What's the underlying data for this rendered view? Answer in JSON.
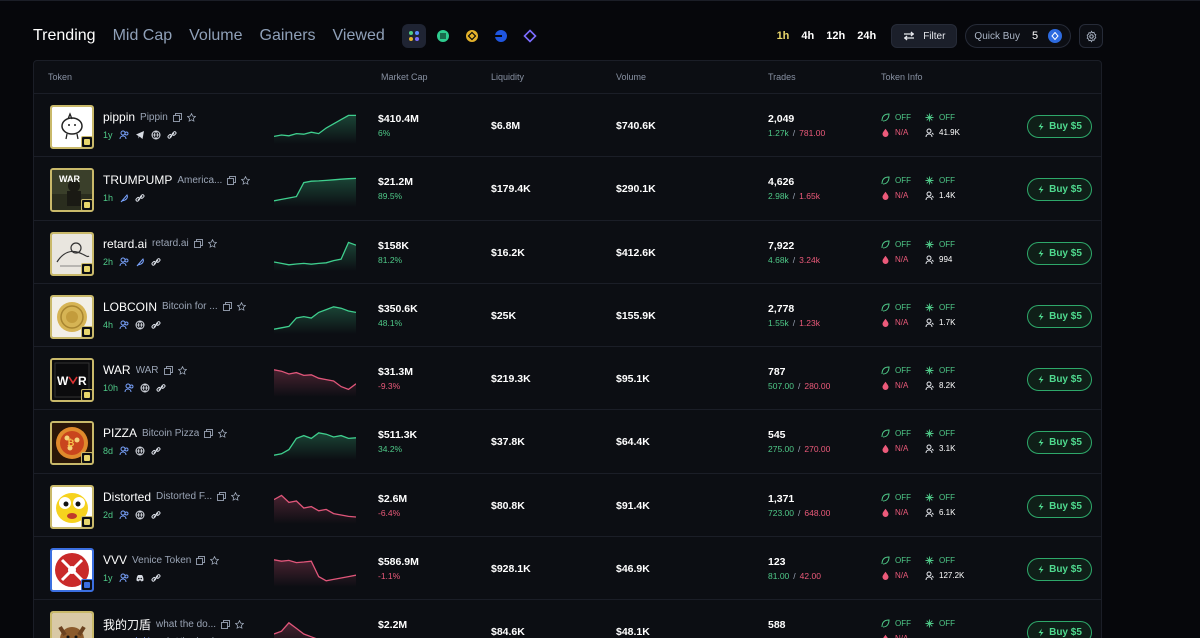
{
  "tabs": [
    "Trending",
    "Mid Cap",
    "Volume",
    "Gainers",
    "Viewed"
  ],
  "active_tab": 0,
  "chains": [
    {
      "name": "all-chains",
      "color": "#5b8cff"
    },
    {
      "name": "solana",
      "color": "#2ecc8f"
    },
    {
      "name": "bnb",
      "color": "#e4b22b"
    },
    {
      "name": "base",
      "color": "#1f56e0"
    },
    {
      "name": "ethereum",
      "color": "#7b6cff"
    }
  ],
  "timeframes": [
    "1h",
    "4h",
    "12h",
    "24h"
  ],
  "active_timeframe": 0,
  "filter_label": "Filter",
  "quick_buy": {
    "label": "Quick Buy",
    "value": "5"
  },
  "columns": {
    "token": "Token",
    "market_cap": "Market Cap",
    "liquidity": "Liquidity",
    "volume": "Volume",
    "trades": "Trades",
    "token_info": "Token Info"
  },
  "rows": [
    {
      "symbol": "pippin",
      "name": "Pippin",
      "age": "1y",
      "socials": [
        "users-icon",
        "telegram-icon",
        "globe-icon",
        "link-icon"
      ],
      "trend": "up",
      "spark": [
        0.2,
        0.25,
        0.22,
        0.3,
        0.28,
        0.35,
        0.3,
        0.5,
        0.65,
        0.8,
        0.95,
        0.95
      ],
      "market_cap": "$410.4M",
      "change": "6%",
      "liquidity": "$6.8M",
      "volume": "$740.6K",
      "trades": "2,049",
      "buys": "1.27k",
      "sells": "781.00",
      "dev": "OFF",
      "snipers": "OFF",
      "top10": "N/A",
      "holders": "41.9K",
      "buy_label": "Buy $5",
      "avatar": "pippin"
    },
    {
      "symbol": "TRUMPUMP",
      "name": "America...",
      "age": "1h",
      "socials": [
        "feather-icon",
        "link-icon"
      ],
      "trend": "up",
      "spark": [
        0.15,
        0.2,
        0.25,
        0.3,
        0.8,
        0.85,
        0.86,
        0.88,
        0.9,
        0.92,
        0.94,
        0.95
      ],
      "market_cap": "$21.2M",
      "change": "89.5%",
      "liquidity": "$179.4K",
      "volume": "$290.1K",
      "trades": "4,626",
      "buys": "2.98k",
      "sells": "1.65k",
      "dev": "OFF",
      "snipers": "OFF",
      "top10": "N/A",
      "holders": "1.4K",
      "buy_label": "Buy $5",
      "avatar": "war-soldier"
    },
    {
      "symbol": "retard.ai",
      "name": "retard.ai",
      "age": "2h",
      "socials": [
        "users-icon",
        "feather-icon",
        "link-icon"
      ],
      "trend": "up",
      "spark": [
        0.25,
        0.2,
        0.15,
        0.18,
        0.2,
        0.17,
        0.2,
        0.22,
        0.3,
        0.35,
        0.95,
        0.85
      ],
      "market_cap": "$158K",
      "change": "81.2%",
      "liquidity": "$16.2K",
      "volume": "$412.6K",
      "trades": "7,922",
      "buys": "4.68k",
      "sells": "3.24k",
      "dev": "OFF",
      "snipers": "OFF",
      "top10": "N/A",
      "holders": "994",
      "buy_label": "Buy $5",
      "avatar": "sketch"
    },
    {
      "symbol": "LOBCOIN",
      "name": "Bitcoin for ...",
      "age": "4h",
      "socials": [
        "users-icon",
        "globe-icon",
        "link-icon"
      ],
      "trend": "up",
      "spark": [
        0.1,
        0.15,
        0.2,
        0.5,
        0.55,
        0.5,
        0.7,
        0.8,
        0.9,
        0.85,
        0.75,
        0.7
      ],
      "market_cap": "$350.6K",
      "change": "48.1%",
      "liquidity": "$25K",
      "volume": "$155.9K",
      "trades": "2,778",
      "buys": "1.55k",
      "sells": "1.23k",
      "dev": "OFF",
      "snipers": "OFF",
      "top10": "N/A",
      "holders": "1.7K",
      "buy_label": "Buy $5",
      "avatar": "coin"
    },
    {
      "symbol": "WAR",
      "name": "WAR",
      "age": "10h",
      "socials": [
        "users-icon",
        "globe-icon",
        "link-icon"
      ],
      "trend": "down",
      "spark": [
        0.9,
        0.85,
        0.75,
        0.8,
        0.7,
        0.72,
        0.6,
        0.55,
        0.5,
        0.3,
        0.2,
        0.4
      ],
      "market_cap": "$31.3M",
      "change": "-9.3%",
      "liquidity": "$219.3K",
      "volume": "$95.1K",
      "trades": "787",
      "buys": "507.00",
      "sells": "280.00",
      "dev": "OFF",
      "snipers": "OFF",
      "top10": "N/A",
      "holders": "8.2K",
      "buy_label": "Buy $5",
      "avatar": "war-logo"
    },
    {
      "symbol": "PIZZA",
      "name": "Bitcoin Pizza",
      "age": "8d",
      "socials": [
        "users-icon",
        "globe-icon",
        "link-icon"
      ],
      "trend": "up",
      "spark": [
        0.1,
        0.15,
        0.3,
        0.7,
        0.8,
        0.7,
        0.9,
        0.85,
        0.75,
        0.8,
        0.7,
        0.72
      ],
      "market_cap": "$511.3K",
      "change": "34.2%",
      "liquidity": "$37.8K",
      "volume": "$64.4K",
      "trades": "545",
      "buys": "275.00",
      "sells": "270.00",
      "dev": "OFF",
      "snipers": "OFF",
      "top10": "N/A",
      "holders": "3.1K",
      "buy_label": "Buy $5",
      "avatar": "pizza"
    },
    {
      "symbol": "Distorted",
      "name": "Distorted F...",
      "age": "2d",
      "socials": [
        "users-icon",
        "globe-icon",
        "link-icon"
      ],
      "trend": "down",
      "spark": [
        0.8,
        0.95,
        0.7,
        0.75,
        0.5,
        0.55,
        0.4,
        0.45,
        0.3,
        0.25,
        0.2,
        0.18
      ],
      "market_cap": "$2.6M",
      "change": "-6.4%",
      "liquidity": "$80.8K",
      "volume": "$91.4K",
      "trades": "1,371",
      "buys": "723.00",
      "sells": "648.00",
      "dev": "OFF",
      "snipers": "OFF",
      "top10": "N/A",
      "holders": "6.1K",
      "buy_label": "Buy $5",
      "avatar": "face"
    },
    {
      "symbol": "VVV",
      "name": "Venice Token",
      "age": "1y",
      "socials": [
        "users-icon",
        "discord-icon",
        "link-icon"
      ],
      "trend": "down",
      "spark": [
        0.9,
        0.85,
        0.88,
        0.8,
        0.82,
        0.85,
        0.3,
        0.15,
        0.2,
        0.25,
        0.3,
        0.35
      ],
      "market_cap": "$586.9M",
      "change": "-1.1%",
      "liquidity": "$928.1K",
      "volume": "$46.9K",
      "trades": "123",
      "buys": "81.00",
      "sells": "42.00",
      "dev": "OFF",
      "snipers": "OFF",
      "top10": "N/A",
      "holders": "127.2K",
      "buy_label": "Buy $5",
      "avatar": "keys"
    },
    {
      "symbol": "我的刀盾",
      "name": "what the do...",
      "sub_desc": "my sword shi...",
      "sub_desc2": "what the dog d...",
      "age": "",
      "socials": [],
      "trend": "down",
      "spark": [
        0.5,
        0.6,
        0.9,
        0.7,
        0.5,
        0.4,
        0.3,
        0.3,
        0.3,
        0.3,
        0.3,
        0.3
      ],
      "market_cap": "$2.2M",
      "change": "",
      "liquidity": "$84.6K",
      "volume": "$48.1K",
      "trades": "588",
      "buys": "",
      "sells": "",
      "dev": "OFF",
      "snipers": "OFF",
      "top10": "N/A",
      "holders": "",
      "buy_label": "Buy $5",
      "avatar": "dog"
    }
  ]
}
